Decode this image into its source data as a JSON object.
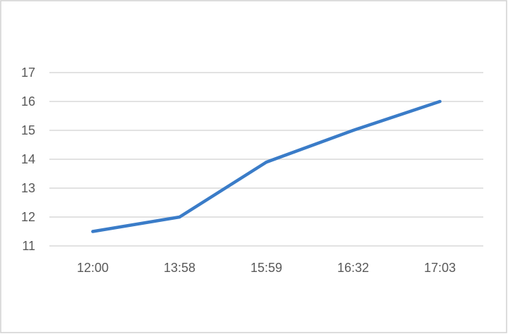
{
  "chart_data": {
    "type": "line",
    "title": "",
    "xlabel": "",
    "ylabel": "",
    "categories": [
      "12:00",
      "13:58",
      "15:59",
      "16:32",
      "17:03"
    ],
    "series": [
      {
        "values": [
          11.5,
          12,
          13.9,
          15,
          16
        ],
        "color": "#3A7CC8"
      }
    ],
    "ylim": [
      11,
      17
    ],
    "yticks": [
      11,
      12,
      13,
      14,
      15,
      16,
      17
    ],
    "grid": "horizontal",
    "legend": "none",
    "colors": {
      "grid": "#D9D9D9",
      "border": "#D0D0D0",
      "text": "#595959"
    }
  }
}
